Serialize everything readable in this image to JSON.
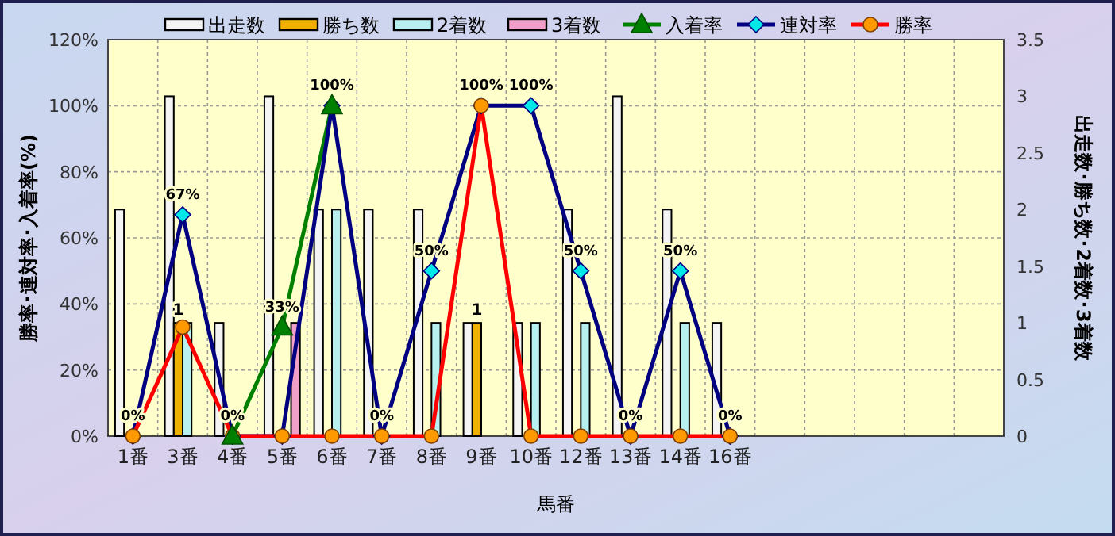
{
  "chart_data": {
    "type": "bar",
    "xlabel": "馬番",
    "ylabel": "勝率･連対率･入着率(%)",
    "y2label": "出走数･勝ち数･2着数･3着数",
    "categories": [
      "1番",
      "3番",
      "4番",
      "5番",
      "6番",
      "7番",
      "8番",
      "9番",
      "10番",
      "12番",
      "13番",
      "14番",
      "16番",
      null,
      null,
      null,
      null,
      null
    ],
    "series": [
      {
        "name": "出走数",
        "type": "bar",
        "axis": "y2",
        "color": "#f4f4f4",
        "values": [
          2,
          3,
          1,
          3,
          2,
          2,
          2,
          1,
          1,
          2,
          3,
          2,
          1,
          null,
          null,
          null,
          null,
          null
        ]
      },
      {
        "name": "勝ち数",
        "type": "bar",
        "axis": "y2",
        "color": "#f0b000",
        "values": [
          0,
          1,
          0,
          0,
          0,
          0,
          0,
          1,
          0,
          0,
          0,
          0,
          0,
          null,
          null,
          null,
          null,
          null
        ],
        "value_labels": [
          null,
          "1",
          null,
          null,
          null,
          null,
          null,
          "1",
          null,
          null,
          null,
          null,
          null,
          null,
          null,
          null,
          null,
          null
        ]
      },
      {
        "name": "2着数",
        "type": "bar",
        "axis": "y2",
        "color": "#b8f0f0",
        "values": [
          0,
          1,
          0,
          0,
          2,
          0,
          1,
          0,
          1,
          1,
          0,
          1,
          0,
          null,
          null,
          null,
          null,
          null
        ]
      },
      {
        "name": "3着数",
        "type": "bar",
        "axis": "y2",
        "color": "#f0a0c8",
        "values": [
          0,
          0,
          0,
          1,
          0,
          0,
          0,
          0,
          0,
          0,
          0,
          0,
          0,
          null,
          null,
          null,
          null,
          null
        ]
      },
      {
        "name": "入着率",
        "type": "line",
        "color": "#008000",
        "marker": "triangle",
        "values": [
          null,
          null,
          0,
          33,
          100,
          null,
          null,
          null,
          null,
          null,
          null,
          null,
          null,
          null,
          null,
          null,
          null,
          null
        ],
        "value_labels": [
          null,
          null,
          null,
          "33%",
          null,
          null,
          null,
          null,
          null,
          null,
          null,
          null,
          null,
          null,
          null,
          null,
          null,
          null
        ]
      },
      {
        "name": "連対率",
        "type": "line",
        "color": "#000080",
        "marker": "diamond",
        "values": [
          0,
          67,
          0,
          0,
          100,
          0,
          50,
          100,
          100,
          50,
          0,
          50,
          0,
          null,
          null,
          null,
          null,
          null
        ],
        "value_labels": [
          "0%",
          "67%",
          "0%",
          null,
          "100%",
          "0%",
          "50%",
          "100%",
          "100%",
          "50%",
          "0%",
          "50%",
          "0%",
          null,
          null,
          null,
          null,
          null
        ]
      },
      {
        "name": "勝率",
        "type": "line",
        "color": "#ff0000",
        "marker": "circle",
        "values": [
          0,
          33,
          0,
          0,
          0,
          0,
          0,
          100,
          0,
          0,
          0,
          0,
          0,
          null,
          null,
          null,
          null,
          null
        ]
      }
    ],
    "ylim": [
      0,
      120
    ],
    "yticks": [
      {
        "value": 0,
        "label": "0%"
      },
      {
        "value": 20,
        "label": "20%"
      },
      {
        "value": 40,
        "label": "40%"
      },
      {
        "value": 60,
        "label": "60%"
      },
      {
        "value": 80,
        "label": "80%"
      },
      {
        "value": 100,
        "label": "100%"
      },
      {
        "value": 120,
        "label": "120%"
      }
    ],
    "y2lim": [
      0,
      3.5
    ],
    "y2ticks": [
      0,
      0.5,
      1,
      1.5,
      2,
      2.5,
      3,
      3.5
    ],
    "grid": true,
    "legend": "top"
  }
}
